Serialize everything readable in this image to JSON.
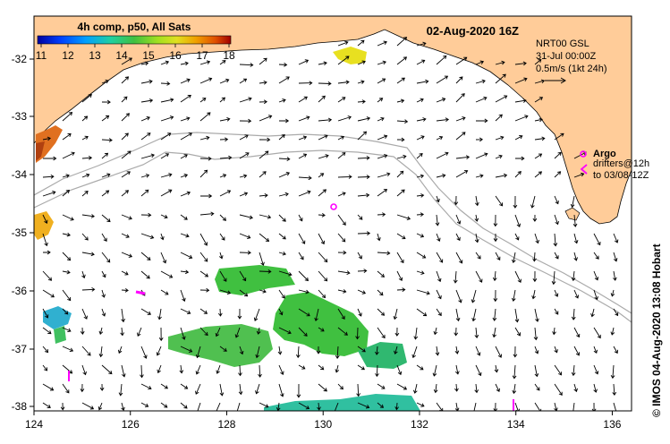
{
  "header": {
    "colorbar_title": "4h comp, p50, All Sats",
    "datetime": "02-Aug-2020 16Z"
  },
  "colorbar": {
    "tick_labels": [
      "11",
      "12",
      "13",
      "14",
      "15",
      "16",
      "17",
      "18"
    ],
    "colors": [
      "#0000a0",
      "#0040ff",
      "#00a0ff",
      "#20d0a0",
      "#40c040",
      "#a0e020",
      "#e0e020",
      "#f0a000",
      "#e05000",
      "#a00000"
    ]
  },
  "info": {
    "line1": "NRT00 GSL",
    "line2": "31-Jul 00:00Z",
    "line3": "0.5m/s (1kt 24h)"
  },
  "legend": {
    "argo_label": "Argo",
    "drifters_line1": "drifters@12h",
    "drifters_line2": "to 03/08-12Z",
    "argo_color": "#ff00ff"
  },
  "credit": "© IMOS 04-Aug-2020 13:08 Hobart",
  "axes": {
    "x_ticks": [
      "124",
      "126",
      "128",
      "130",
      "132",
      "134",
      "136"
    ],
    "y_ticks": [
      "-32",
      "-33",
      "-34",
      "-35",
      "-36",
      "-37",
      "-38"
    ]
  },
  "style": {
    "land_color": "#ffcc99",
    "ocean_color": "#ffffff"
  }
}
